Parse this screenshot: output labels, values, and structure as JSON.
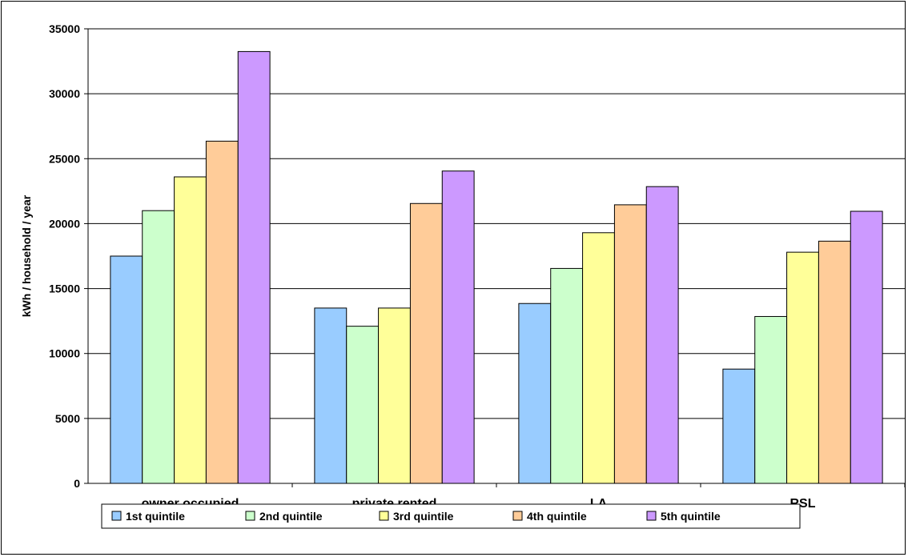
{
  "chart_data": {
    "type": "bar",
    "title": "",
    "xlabel": "",
    "ylabel": "kWh / household / year",
    "ylim": [
      0,
      35000
    ],
    "yticks": [
      0,
      5000,
      10000,
      15000,
      20000,
      25000,
      30000,
      35000
    ],
    "grid": true,
    "legend_position": "bottom",
    "categories": [
      "owner occupied",
      "private rented",
      "LA",
      "RSL"
    ],
    "series": [
      {
        "name": "1st quintile",
        "color": "#99CCFF",
        "values": [
          17500,
          13500,
          13850,
          8800
        ]
      },
      {
        "name": "2nd quintile",
        "color": "#CCFFCC",
        "values": [
          21000,
          12100,
          16550,
          12850
        ]
      },
      {
        "name": "3rd quintile",
        "color": "#FFFF99",
        "values": [
          23600,
          13500,
          19300,
          17800
        ]
      },
      {
        "name": "4th quintile",
        "color": "#FFCC99",
        "values": [
          26350,
          21550,
          21450,
          18650
        ]
      },
      {
        "name": "5th quintile",
        "color": "#CC99FF",
        "values": [
          33250,
          24050,
          22850,
          20950
        ]
      }
    ]
  }
}
